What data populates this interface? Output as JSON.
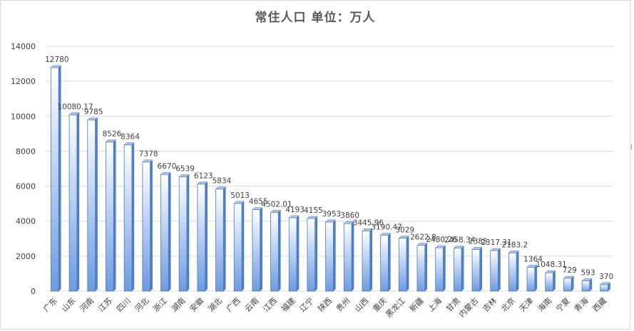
{
  "title": "常住人口 单位：万人",
  "chart_data": {
    "type": "bar",
    "title": "常住人口 单位：万人",
    "xlabel": "",
    "ylabel": "",
    "ylim": [
      0,
      14000
    ],
    "yticks": [
      "0",
      "2000",
      "4000",
      "6000",
      "8000",
      "10000",
      "12000",
      "14000"
    ],
    "grid": true,
    "legend": "none",
    "style": "3d-column",
    "colors": {
      "bar_top": "#ffffff",
      "bar_bottom": "#6d9be0",
      "bar_edge": "#4a78c0",
      "bar_side": "#4f7fc8",
      "bar_cap": "#a9c4ee"
    },
    "categories": [
      "广东",
      "山东",
      "河南",
      "江苏",
      "四川",
      "河北",
      "浙江",
      "湖南",
      "安徽",
      "湖北",
      "广西",
      "云南",
      "江西",
      "福建",
      "辽宁",
      "陕西",
      "贵州",
      "山西",
      "重庆",
      "黑龙江",
      "新疆",
      "上海",
      "甘肃",
      "内蒙古",
      "吉林",
      "北京",
      "天津",
      "海南",
      "宁夏",
      "青海",
      "西藏"
    ],
    "values": [
      12780,
      10080.17,
      9785,
      8526,
      8364,
      7378,
      6670,
      6539,
      6123,
      5834,
      5013,
      4655,
      4502.01,
      4193,
      4155,
      3953,
      3860,
      3445.96,
      3190.47,
      3029,
      2622.8,
      2480.26,
      2458.34,
      2385,
      2317.31,
      2183.2,
      1364,
      1048.31,
      729,
      593,
      370
    ],
    "labels": [
      "12780",
      "10080.17",
      "9785",
      "8526",
      "8364",
      "7378",
      "6670",
      "6539",
      "6123",
      "5834",
      "5013",
      "4655",
      "4502.01",
      "4193",
      "4155",
      "3953",
      "3860",
      "3445.96",
      "3190.47",
      "3029",
      "2622.8",
      "2480.26",
      "2458.34",
      "2385",
      "2317.31",
      "2183.2",
      "1364",
      "1048.31",
      "729",
      "593",
      "370"
    ]
  }
}
